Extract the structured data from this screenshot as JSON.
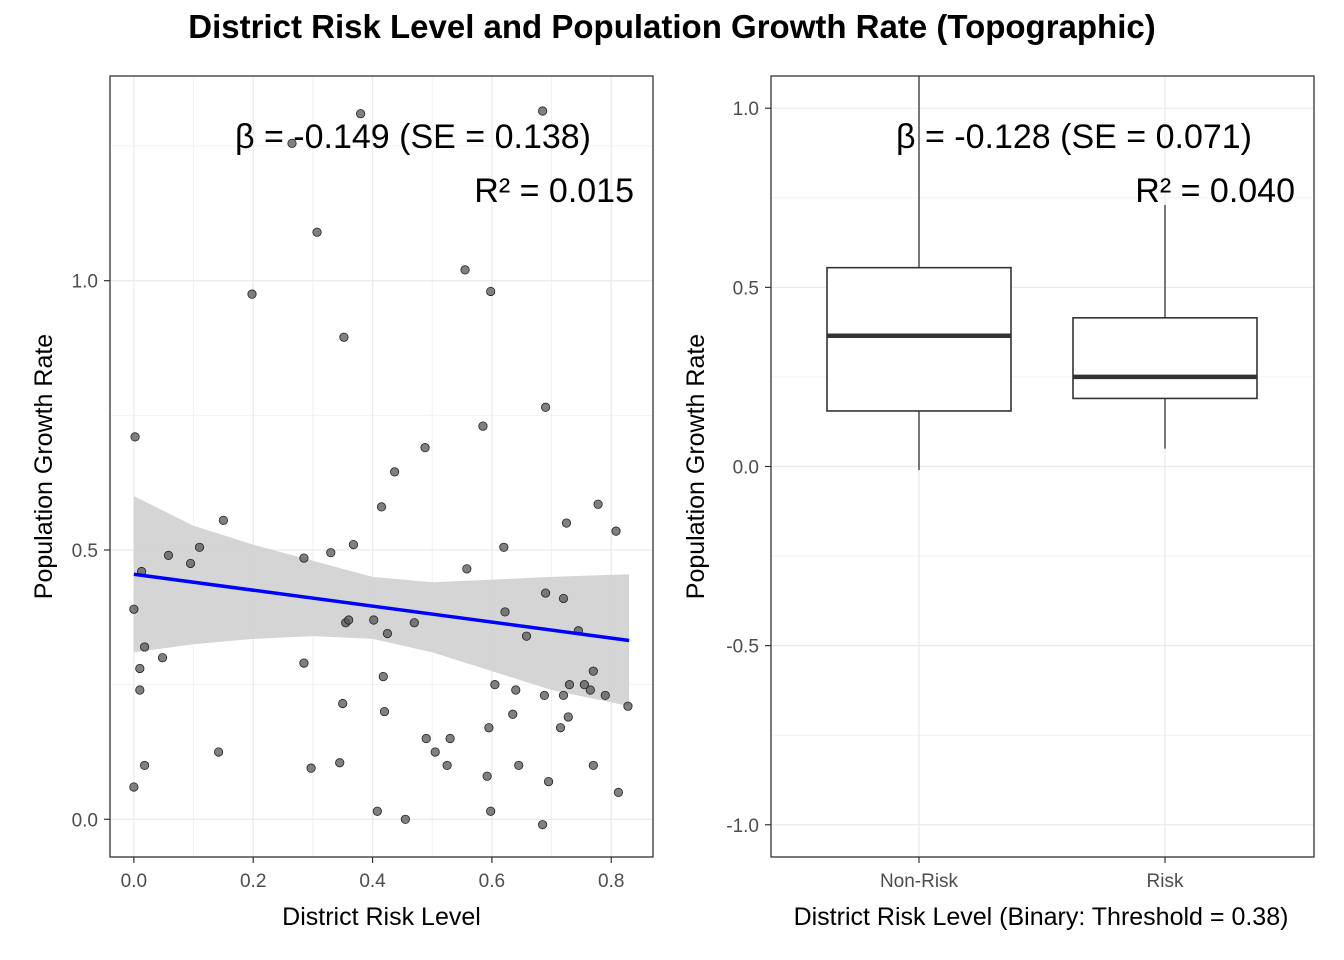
{
  "title": "District Risk Level and Population Growth Rate (Topographic)",
  "chart_data": [
    {
      "type": "scatter",
      "xlabel": "District Risk Level",
      "ylabel": "Population Growth Rate",
      "xlim": [
        -0.04,
        0.87
      ],
      "ylim": [
        -0.07,
        1.38
      ],
      "x_ticks": [
        0.0,
        0.2,
        0.4,
        0.6,
        0.8
      ],
      "x_tick_labels": [
        "0.0",
        "0.2",
        "0.4",
        "0.6",
        "0.8"
      ],
      "y_ticks": [
        0.0,
        0.5,
        1.0
      ],
      "y_tick_labels": [
        "0.0",
        "0.5",
        "1.0"
      ],
      "grid": true,
      "annotations": [
        "β = -0.149 (SE = 0.138)",
        "R² = 0.015"
      ],
      "points": [
        [
          0.0,
          0.39
        ],
        [
          0.002,
          0.71
        ],
        [
          0.0,
          0.06
        ],
        [
          0.01,
          0.28
        ],
        [
          0.01,
          0.24
        ],
        [
          0.013,
          0.46
        ],
        [
          0.018,
          0.32
        ],
        [
          0.018,
          0.1
        ],
        [
          0.048,
          0.3
        ],
        [
          0.058,
          0.49
        ],
        [
          0.095,
          0.475
        ],
        [
          0.11,
          0.505
        ],
        [
          0.142,
          0.125
        ],
        [
          0.15,
          0.555
        ],
        [
          0.198,
          0.975
        ],
        [
          0.265,
          1.255
        ],
        [
          0.285,
          0.485
        ],
        [
          0.285,
          0.29
        ],
        [
          0.297,
          0.095
        ],
        [
          0.307,
          1.09
        ],
        [
          0.33,
          0.495
        ],
        [
          0.345,
          0.105
        ],
        [
          0.35,
          0.215
        ],
        [
          0.352,
          0.895
        ],
        [
          0.355,
          0.365
        ],
        [
          0.36,
          0.37
        ],
        [
          0.368,
          0.51
        ],
        [
          0.38,
          1.31
        ],
        [
          0.402,
          0.37
        ],
        [
          0.408,
          0.015
        ],
        [
          0.415,
          0.58
        ],
        [
          0.418,
          0.265
        ],
        [
          0.42,
          0.2
        ],
        [
          0.425,
          0.345
        ],
        [
          0.437,
          0.645
        ],
        [
          0.455,
          0.0
        ],
        [
          0.47,
          0.365
        ],
        [
          0.488,
          0.69
        ],
        [
          0.49,
          0.15
        ],
        [
          0.505,
          0.125
        ],
        [
          0.525,
          0.1
        ],
        [
          0.53,
          0.15
        ],
        [
          0.555,
          1.02
        ],
        [
          0.558,
          0.465
        ],
        [
          0.585,
          0.73
        ],
        [
          0.592,
          0.08
        ],
        [
          0.595,
          0.17
        ],
        [
          0.598,
          0.98
        ],
        [
          0.598,
          0.015
        ],
        [
          0.605,
          0.25
        ],
        [
          0.62,
          0.505
        ],
        [
          0.622,
          0.385
        ],
        [
          0.635,
          0.195
        ],
        [
          0.64,
          0.24
        ],
        [
          0.645,
          0.1
        ],
        [
          0.658,
          0.34
        ],
        [
          0.685,
          1.315
        ],
        [
          0.685,
          -0.01
        ],
        [
          0.688,
          0.23
        ],
        [
          0.69,
          0.765
        ],
        [
          0.69,
          0.42
        ],
        [
          0.695,
          0.07
        ],
        [
          0.715,
          0.17
        ],
        [
          0.72,
          0.23
        ],
        [
          0.72,
          0.41
        ],
        [
          0.725,
          0.55
        ],
        [
          0.728,
          0.19
        ],
        [
          0.73,
          0.25
        ],
        [
          0.745,
          0.35
        ],
        [
          0.755,
          0.25
        ],
        [
          0.765,
          0.24
        ],
        [
          0.77,
          0.1
        ],
        [
          0.77,
          0.275
        ],
        [
          0.778,
          0.585
        ],
        [
          0.79,
          0.23
        ],
        [
          0.808,
          0.535
        ],
        [
          0.812,
          0.05
        ],
        [
          0.828,
          0.21
        ]
      ],
      "trend": {
        "x": [
          0.0,
          0.83
        ],
        "y": [
          0.455,
          0.332
        ]
      },
      "ci_band": {
        "x": [
          0.0,
          0.1,
          0.2,
          0.3,
          0.4,
          0.5,
          0.6,
          0.7,
          0.83
        ],
        "lower": [
          0.31,
          0.325,
          0.335,
          0.34,
          0.335,
          0.31,
          0.275,
          0.24,
          0.21
        ],
        "upper": [
          0.6,
          0.545,
          0.51,
          0.48,
          0.45,
          0.44,
          0.445,
          0.45,
          0.455
        ]
      },
      "colors": {
        "points": "#555555",
        "trend": "#0000ff",
        "band": "#d3d3d3"
      }
    },
    {
      "type": "box",
      "xlabel": "District Risk Level (Binary: Threshold = 0.38)",
      "ylabel": "Population Growth Rate",
      "ylim": [
        -1.09,
        1.09
      ],
      "y_ticks": [
        -1.0,
        -0.5,
        0.0,
        0.5,
        1.0
      ],
      "y_tick_labels": [
        "-1.0",
        "-0.5",
        "0.0",
        "0.5",
        "1.0"
      ],
      "categories": [
        "Non-Risk",
        "Risk"
      ],
      "grid": true,
      "annotations": [
        "β = -0.128 (SE = 0.071)",
        "R² = 0.040"
      ],
      "boxes": [
        {
          "category": "Non-Risk",
          "min": -0.01,
          "q1": 0.155,
          "median": 0.365,
          "q3": 0.555,
          "max": 1.09
        },
        {
          "category": "Risk",
          "min": 0.05,
          "q1": 0.19,
          "median": 0.25,
          "q3": 0.415,
          "max": 0.73
        }
      ]
    }
  ]
}
